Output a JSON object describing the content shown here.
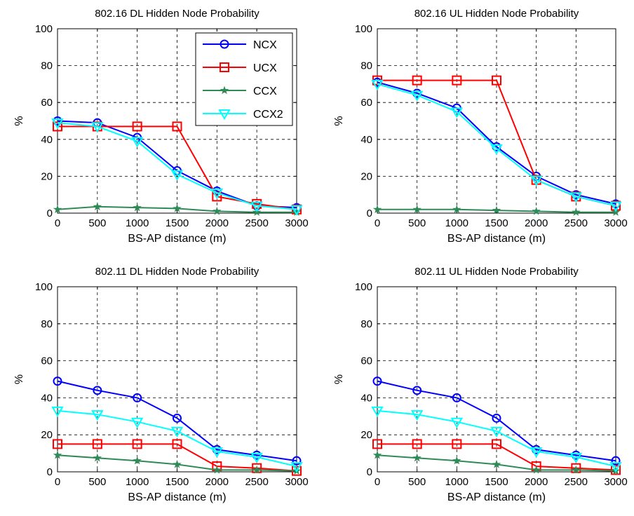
{
  "figure": {
    "background": "#ffffff"
  },
  "series_styles": [
    {
      "key": "NCX",
      "color": "#0000ff",
      "marker": "circle"
    },
    {
      "key": "UCX",
      "color": "#ff0000",
      "marker": "square"
    },
    {
      "key": "CCX",
      "color": "#2e8b57",
      "marker": "star"
    },
    {
      "key": "CCX2",
      "color": "#00ffff",
      "marker": "triangle-down"
    }
  ],
  "chart_data": [
    {
      "type": "line",
      "title": "802.16 DL Hidden Node Probability",
      "xlabel": "BS-AP distance (m)",
      "ylabel": "%",
      "x": [
        0,
        500,
        1000,
        1500,
        2000,
        2500,
        3000
      ],
      "xticks": [
        "0",
        "500",
        "1000",
        "1500",
        "2000",
        "2500",
        "3000"
      ],
      "yticks": [
        "0",
        "20",
        "40",
        "60",
        "80",
        "100"
      ],
      "xlim": [
        0,
        3000
      ],
      "ylim": [
        0,
        100
      ],
      "grid": true,
      "legend": {
        "placement": "top-right",
        "entries": [
          "NCX",
          "UCX",
          "CCX",
          "CCX2"
        ]
      },
      "series": [
        {
          "name": "NCX",
          "values": [
            50,
            49,
            41,
            23,
            12,
            4,
            3
          ]
        },
        {
          "name": "UCX",
          "values": [
            47,
            47,
            47,
            47,
            9,
            5,
            2
          ]
        },
        {
          "name": "CCX",
          "values": [
            2,
            3.5,
            3,
            2.5,
            1,
            0.5,
            0.5
          ]
        },
        {
          "name": "CCX2",
          "values": [
            49,
            47,
            39,
            21,
            11,
            4,
            2
          ]
        }
      ]
    },
    {
      "type": "line",
      "title": "802.16 UL Hidden Node Probability",
      "xlabel": "BS-AP distance (m)",
      "ylabel": "%",
      "x": [
        0,
        500,
        1000,
        1500,
        2000,
        2500,
        3000
      ],
      "xticks": [
        "0",
        "500",
        "1000",
        "1500",
        "2000",
        "2500",
        "3000"
      ],
      "yticks": [
        "0",
        "20",
        "40",
        "60",
        "80",
        "100"
      ],
      "xlim": [
        0,
        3000
      ],
      "ylim": [
        0,
        100
      ],
      "grid": true,
      "series": [
        {
          "name": "NCX",
          "values": [
            71,
            65,
            57,
            36,
            20,
            10,
            5
          ]
        },
        {
          "name": "UCX",
          "values": [
            72,
            72,
            72,
            72,
            18,
            9,
            4
          ]
        },
        {
          "name": "CCX",
          "values": [
            2,
            2,
            2,
            1.5,
            1,
            0.5,
            0.5
          ]
        },
        {
          "name": "CCX2",
          "values": [
            70,
            64,
            55,
            35,
            18,
            9,
            4
          ]
        }
      ]
    },
    {
      "type": "line",
      "title": "802.11 DL Hidden Node Probability",
      "xlabel": "BS-AP distance (m)",
      "ylabel": "%",
      "x": [
        0,
        500,
        1000,
        1500,
        2000,
        2500,
        3000
      ],
      "xticks": [
        "0",
        "500",
        "1000",
        "1500",
        "2000",
        "2500",
        "3000"
      ],
      "yticks": [
        "0",
        "20",
        "40",
        "60",
        "80",
        "100"
      ],
      "xlim": [
        0,
        3000
      ],
      "ylim": [
        0,
        100
      ],
      "grid": true,
      "series": [
        {
          "name": "NCX",
          "values": [
            49,
            44,
            40,
            29,
            12,
            9,
            6
          ]
        },
        {
          "name": "UCX",
          "values": [
            15,
            15,
            15,
            15,
            3,
            2,
            0.5
          ]
        },
        {
          "name": "CCX",
          "values": [
            9,
            7.5,
            6,
            4,
            1,
            1,
            0.5
          ]
        },
        {
          "name": "CCX2",
          "values": [
            33,
            31,
            27,
            22,
            11,
            8,
            3
          ]
        }
      ]
    },
    {
      "type": "line",
      "title": "802.11 UL Hidden Node Probability",
      "xlabel": "BS-AP distance (m)",
      "ylabel": "%",
      "x": [
        0,
        500,
        1000,
        1500,
        2000,
        2500,
        3000
      ],
      "xticks": [
        "0",
        "500",
        "1000",
        "1500",
        "2000",
        "2500",
        "3000"
      ],
      "yticks": [
        "0",
        "20",
        "40",
        "60",
        "80",
        "100"
      ],
      "xlim": [
        0,
        3000
      ],
      "ylim": [
        0,
        100
      ],
      "grid": true,
      "series": [
        {
          "name": "NCX",
          "values": [
            49,
            44,
            40,
            29,
            12,
            9,
            6
          ]
        },
        {
          "name": "UCX",
          "values": [
            15,
            15,
            15,
            15,
            3,
            2,
            1
          ]
        },
        {
          "name": "CCX",
          "values": [
            9,
            7.5,
            6,
            4,
            1,
            1,
            0.5
          ]
        },
        {
          "name": "CCX2",
          "values": [
            33,
            31,
            27,
            22,
            11,
            8,
            3
          ]
        }
      ]
    }
  ]
}
